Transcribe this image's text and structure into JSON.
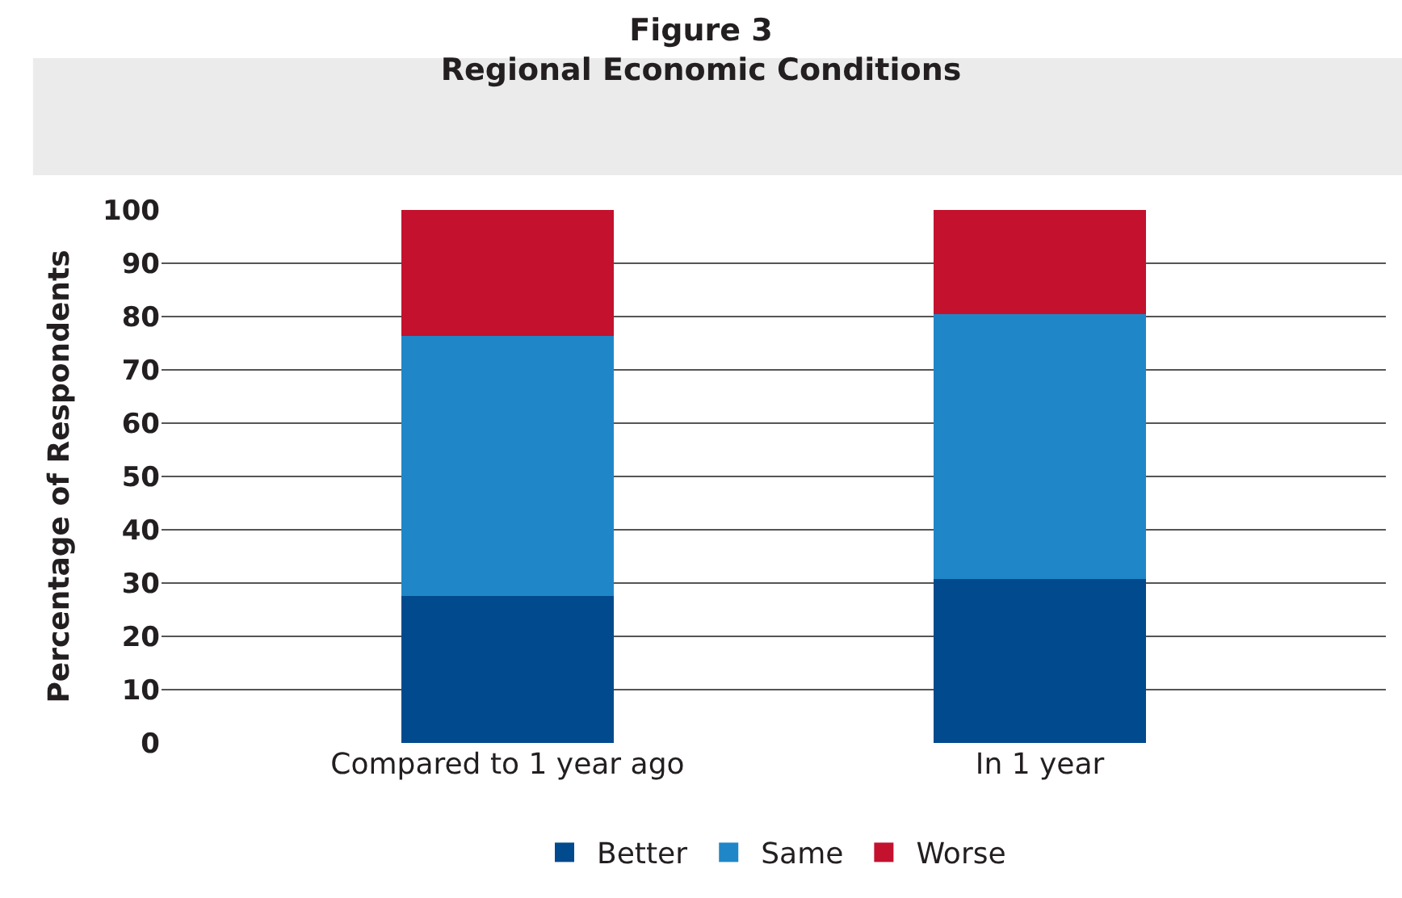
{
  "chart_data": {
    "type": "bar",
    "stacked": true,
    "title": "Figure 3",
    "subtitle": "Regional Economic Conditions",
    "ylabel": "Percentage of Respondents",
    "categories": [
      "Compared to 1 year ago",
      "In 1 year"
    ],
    "series": [
      {
        "name": "Better",
        "color": "#004a8d",
        "values": [
          27.6,
          30.7
        ]
      },
      {
        "name": "Same",
        "color": "#1f87c8",
        "values": [
          48.7,
          49.7
        ]
      },
      {
        "name": "Worse",
        "color": "#c3112e",
        "values": [
          23.7,
          19.6
        ]
      }
    ],
    "ylim": [
      0,
      100
    ],
    "yticks": [
      0,
      10,
      20,
      30,
      40,
      50,
      60,
      70,
      80,
      90,
      100
    ],
    "grid": "y",
    "legend": "bottom"
  }
}
